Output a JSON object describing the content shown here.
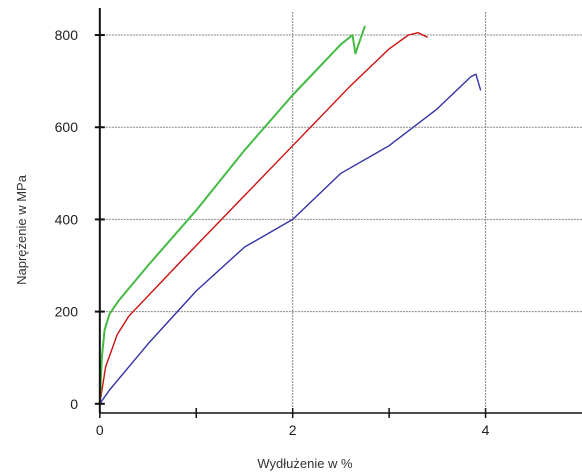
{
  "chart_data": {
    "type": "line",
    "xlabel": "Wydłużenie w %",
    "ylabel": "Naprężenie w MPa",
    "xlim": [
      -0.05,
      5
    ],
    "ylim": [
      -20,
      850
    ],
    "xticks": [
      0,
      2,
      4
    ],
    "yticks": [
      0,
      200,
      400,
      600,
      800
    ],
    "xminor_ticks": [
      1,
      3
    ],
    "grid": true,
    "legend": "none",
    "series": [
      {
        "color": "#cc1111",
        "x": [
          0.0,
          0.06,
          0.18,
          0.3,
          0.8,
          1.4,
          2.0,
          2.6,
          3.0,
          3.2,
          3.3,
          3.4
        ],
        "y": [
          0,
          80,
          150,
          190,
          300,
          430,
          560,
          690,
          770,
          800,
          805,
          795
        ]
      },
      {
        "color": "#44bb44",
        "x": [
          0.0,
          0.02,
          0.05,
          0.1,
          0.2,
          0.5,
          1.0,
          1.5,
          2.0,
          2.5,
          2.62,
          2.65,
          2.75
        ],
        "y": [
          0,
          100,
          160,
          195,
          225,
          300,
          420,
          550,
          670,
          780,
          800,
          760,
          820
        ]
      },
      {
        "color": "#3333aa",
        "x": [
          0.0,
          0.1,
          0.5,
          1.0,
          1.5,
          2.0,
          2.5,
          3.0,
          3.5,
          3.85,
          3.9,
          3.95
        ],
        "y": [
          0,
          30,
          130,
          245,
          340,
          400,
          500,
          560,
          640,
          710,
          715,
          680
        ]
      }
    ]
  }
}
